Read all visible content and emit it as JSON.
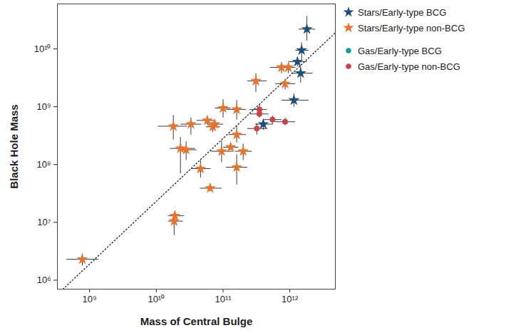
{
  "chart_data": {
    "type": "scatter",
    "x_label": "Mass of Central Bulge",
    "y_label": "Black Hole Mass",
    "log": true,
    "legend": "right",
    "xlim": [
      330000000.0,
      4800000000000.0
    ],
    "ylim": [
      700000.0,
      60000000000.0
    ],
    "xticks": [
      {
        "value": 1000000000.0,
        "label": "10⁹"
      },
      {
        "value": 10000000000.0,
        "label": "10¹⁰"
      },
      {
        "value": 100000000000.0,
        "label": "10¹¹"
      },
      {
        "value": 1000000000000.0,
        "label": "10¹²"
      }
    ],
    "yticks": [
      {
        "value": 1000000.0,
        "label": "10⁶"
      },
      {
        "value": 10000000.0,
        "label": "10⁷"
      },
      {
        "value": 100000000.0,
        "label": "10⁸"
      },
      {
        "value": 1000000000.0,
        "label": "10⁹"
      },
      {
        "value": 10000000000.0,
        "label": "10¹⁰"
      }
    ],
    "series": [
      {
        "name": "Stars/Early-type BCG",
        "color": "#1f4e7a",
        "marker": "star",
        "x": [
          1800000000000.0,
          1500000000000.0,
          1300000000000.0,
          1450000000000.0,
          1150000000000.0,
          400000000000.0
        ],
        "values": [
          22000000000.0,
          9500000000.0,
          6000000000.0,
          3800000000.0,
          1300000000.0,
          500000000.0
        ],
        "x_range": [
          [
            1350000000000.0,
            2400000000000.0
          ],
          [
            1200000000000.0,
            1900000000000.0
          ],
          [
            950000000000.0,
            1800000000000.0
          ],
          [
            1050000000000.0,
            2200000000000.0
          ],
          [
            750000000000.0,
            1900000000000.0
          ],
          [
            300000000000.0,
            550000000000.0
          ]
        ],
        "y_range": [
          [
            14000000000.0,
            37000000000.0
          ],
          [
            6500000000.0,
            13000000000.0
          ],
          [
            5000000000.0,
            7000000000.0
          ],
          [
            2600000000.0,
            5000000000.0
          ],
          [
            1000000000.0,
            1700000000.0
          ],
          [
            400000000.0,
            600000000.0
          ]
        ]
      },
      {
        "name": "Stars/Early-type non-BCG",
        "color": "#e8732c",
        "marker": "star",
        "x": [
          780000000.0,
          18500000000.0,
          19000000000.0,
          18000000000.0,
          33000000000.0,
          23000000000.0,
          28000000000.0,
          46000000000.0,
          64000000000.0,
          58000000000.0,
          70000000000.0,
          75000000000.0,
          100000000000.0,
          95000000000.0,
          130000000000.0,
          160000000000.0,
          160000000000.0,
          160000000000.0,
          200000000000.0,
          310000000000.0,
          750000000000.0,
          950000000000.0,
          850000000000.0
        ],
        "values": [
          2300000.0,
          10500000.0,
          13000000.0,
          460000000.0,
          500000000.0,
          190000000.0,
          180000000.0,
          85000000.0,
          39000000.0,
          580000000.0,
          450000000.0,
          500000000.0,
          950000000.0,
          170000000.0,
          200000000.0,
          900000000.0,
          330000000.0,
          90000000.0,
          170000000.0,
          2800000000.0,
          4800000000.0,
          4800000000.0,
          2500000000.0
        ],
        "x_range": [
          [
            450000000.0,
            1350000000.0
          ],
          [
            15000000000.0,
            25000000000.0
          ],
          [
            15000000000.0,
            26000000000.0
          ],
          [
            10500000000.0,
            29000000000.0
          ],
          [
            23000000000.0,
            47000000000.0
          ],
          [
            16000000000.0,
            38000000000.0
          ],
          [
            22000000000.0,
            40000000000.0
          ],
          [
            33000000000.0,
            65000000000.0
          ],
          [
            45000000000.0,
            95000000000.0
          ],
          [
            40000000000.0,
            75000000000.0
          ],
          [
            55000000000.0,
            90000000000.0
          ],
          [
            58000000000.0,
            100000000000.0
          ],
          [
            75000000000.0,
            130000000000.0
          ],
          [
            65000000000.0,
            140000000000.0
          ],
          [
            100000000000.0,
            170000000000.0
          ],
          [
            110000000000.0,
            220000000000.0
          ],
          [
            120000000000.0,
            220000000000.0
          ],
          [
            110000000000.0,
            230000000000.0
          ],
          [
            150000000000.0,
            270000000000.0
          ],
          [
            230000000000.0,
            450000000000.0
          ],
          [
            500000000000.0,
            1000000000000.0
          ],
          [
            750000000000.0,
            1200000000000.0
          ],
          [
            600000000000.0,
            1200000000000.0
          ]
        ],
        "y_range": [
          [
            1800000.0,
            2900000.0
          ],
          [
            6000000.0,
            15000000.0
          ],
          [
            11000000.0,
            16000000.0
          ],
          [
            270000000.0,
            720000000.0
          ],
          [
            330000000.0,
            650000000.0
          ],
          [
            70000000.0,
            300000000.0
          ],
          [
            120000000.0,
            250000000.0
          ],
          [
            60000000.0,
            120000000.0
          ],
          [
            35000000.0,
            45000000.0
          ],
          [
            500000000.0,
            680000000.0
          ],
          [
            370000000.0,
            550000000.0
          ],
          [
            420000000.0,
            580000000.0
          ],
          [
            650000000.0,
            1350000000.0
          ],
          [
            110000000.0,
            260000000.0
          ],
          [
            180000000.0,
            220000000.0
          ],
          [
            600000000.0,
            1300000000.0
          ],
          [
            240000000.0,
            460000000.0
          ],
          [
            45000000.0,
            150000000.0
          ],
          [
            120000000.0,
            230000000.0
          ],
          [
            1800000000.0,
            3800000000.0
          ],
          [
            3800000000.0,
            5800000000.0
          ],
          [
            3800000000.0,
            5800000000.0
          ],
          [
            2000000000.0,
            3000000000.0
          ]
        ]
      },
      {
        "name": "Gas/Early-type BCG",
        "color": "#1a9a96",
        "marker": "circle",
        "x": [],
        "values": [],
        "x_range": [],
        "y_range": []
      },
      {
        "name": "Gas/Early-type non-BCG",
        "color": "#c9434c",
        "marker": "circle",
        "x": [
          350000000000.0,
          350000000000.0,
          320000000000.0,
          550000000000.0,
          850000000000.0
        ],
        "values": [
          900000000.0,
          750000000.0,
          420000000.0,
          600000000.0,
          550000000.0
        ],
        "x_range": [
          [
            250000000000.0,
            450000000000.0
          ],
          [
            250000000000.0,
            480000000000.0
          ],
          [
            230000000000.0,
            460000000000.0
          ],
          [
            400000000000.0,
            750000000000.0
          ],
          [
            600000000000.0,
            1200000000000.0
          ]
        ],
        "y_range": [
          [
            750000000.0,
            1100000000.0
          ],
          [
            650000000.0,
            850000000.0
          ],
          [
            330000000.0,
            520000000.0
          ],
          [
            500000000.0,
            700000000.0
          ],
          [
            480000000.0,
            650000000.0
          ]
        ]
      }
    ],
    "reference_line": {
      "x": [
        400000000.0,
        4800000000000.0
      ],
      "values": [
        700000.0,
        19000000000.0
      ],
      "line_style": "dotted"
    }
  }
}
